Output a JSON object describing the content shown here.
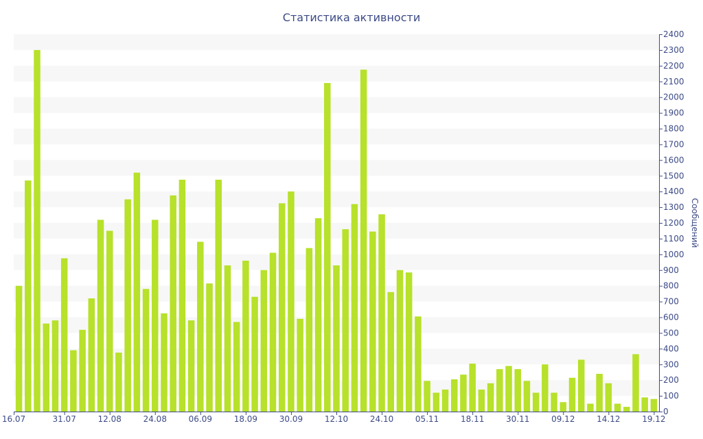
{
  "chart_data": {
    "type": "bar",
    "title": "Статистика активности",
    "xlabel": "",
    "ylabel": "Сообщений",
    "ylim": [
      0,
      2400
    ],
    "y_ticks": [
      0,
      100,
      200,
      300,
      400,
      500,
      600,
      700,
      800,
      900,
      1000,
      1100,
      1200,
      1300,
      1400,
      1500,
      1600,
      1700,
      1800,
      1900,
      2000,
      2100,
      2200,
      2300,
      2400
    ],
    "x_tick_labels": [
      "16.07",
      "31.07",
      "12.08",
      "24.08",
      "06.09",
      "18.09",
      "30.09",
      "12.10",
      "24.10",
      "05.11",
      "18.11",
      "30.11",
      "09.12",
      "14.12",
      "19.12"
    ],
    "x_tick_bar_index": [
      0,
      5,
      10,
      15,
      20,
      25,
      30,
      35,
      40,
      45,
      50,
      55,
      60,
      65,
      70
    ],
    "grid": "horizontal-bands",
    "y_axis_side": "right",
    "bar_color": "#b7e12a",
    "band_color": "#f7f7f7",
    "text_color": "#3c4a86",
    "values": [
      800,
      1470,
      2300,
      560,
      580,
      975,
      390,
      520,
      720,
      1220,
      1150,
      375,
      1350,
      1520,
      780,
      1220,
      625,
      1375,
      1475,
      580,
      1080,
      815,
      1475,
      930,
      570,
      960,
      730,
      900,
      1010,
      1325,
      1400,
      590,
      1040,
      1230,
      2090,
      930,
      1160,
      1320,
      2175,
      1145,
      1255,
      760,
      900,
      885,
      605,
      195,
      120,
      140,
      205,
      235,
      305,
      140,
      180,
      270,
      290,
      270,
      195,
      120,
      300,
      120,
      60,
      215,
      330,
      50,
      240,
      180,
      50,
      30,
      365,
      90,
      80
    ]
  }
}
